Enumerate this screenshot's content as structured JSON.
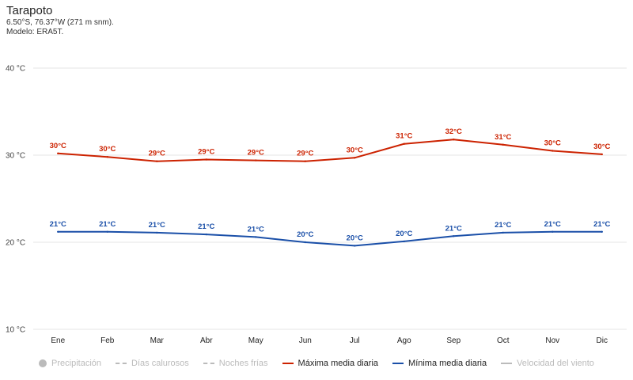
{
  "header": {
    "title": "Tarapoto",
    "subtitle": "6.50°S, 76.37°W (271 m snm).",
    "model": "Modelo: ERA5T."
  },
  "legend": {
    "precip": "Precipitación",
    "hot_days": "Días calurosos",
    "cold_nights": "Noches frías",
    "max": "Máxima media diaria",
    "min": "Mínima media diaria",
    "wind": "Velocidad del viento"
  },
  "colors": {
    "max": "#cc2200",
    "min": "#1a4fa8",
    "inactive": "#bbbbbb",
    "grid": "#e6e6e6"
  },
  "chart_data": {
    "type": "line",
    "categories": [
      "Ene",
      "Feb",
      "Mar",
      "Abr",
      "May",
      "Jun",
      "Jul",
      "Ago",
      "Sep",
      "Oct",
      "Nov",
      "Dic"
    ],
    "y_ticks": [
      {
        "value": 10,
        "label": "10 °C"
      },
      {
        "value": 20,
        "label": "20 °C"
      },
      {
        "value": 30,
        "label": "30 °C"
      },
      {
        "value": 40,
        "label": "40 °C"
      }
    ],
    "ylim": [
      10,
      40
    ],
    "series": [
      {
        "name": "Máxima media diaria",
        "color_key": "max",
        "values": [
          30.2,
          29.8,
          29.3,
          29.5,
          29.4,
          29.3,
          29.7,
          31.3,
          31.8,
          31.2,
          30.5,
          30.1
        ],
        "labels": [
          "30°C",
          "30°C",
          "29°C",
          "29°C",
          "29°C",
          "29°C",
          "30°C",
          "31°C",
          "32°C",
          "31°C",
          "30°C",
          "30°C"
        ]
      },
      {
        "name": "Mínima media diaria",
        "color_key": "min",
        "values": [
          21.2,
          21.2,
          21.1,
          20.9,
          20.6,
          20.0,
          19.6,
          20.1,
          20.7,
          21.1,
          21.2,
          21.2
        ],
        "labels": [
          "21°C",
          "21°C",
          "21°C",
          "21°C",
          "21°C",
          "20°C",
          "20°C",
          "20°C",
          "21°C",
          "21°C",
          "21°C",
          "21°C"
        ]
      }
    ]
  }
}
